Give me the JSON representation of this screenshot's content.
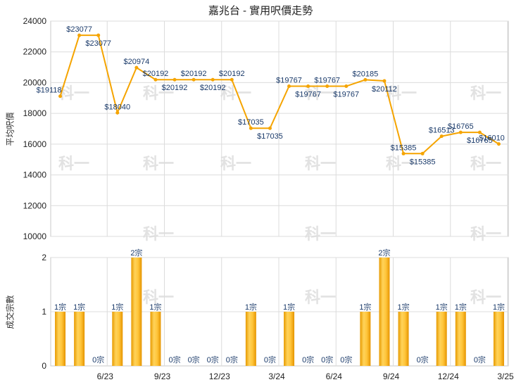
{
  "title": "嘉兆台 - 實用呎價走勢",
  "chart_data": [
    {
      "type": "line",
      "ylabel": "平均呎價",
      "ylim": [
        10000,
        24000
      ],
      "yticks": [
        10000,
        12000,
        14000,
        16000,
        18000,
        20000,
        22000,
        24000
      ],
      "x_ticks": [
        "6/23",
        "9/23",
        "12/23",
        "3/24",
        "6/24",
        "9/24",
        "12/24",
        "3/25"
      ],
      "values": [
        19118,
        23077,
        23077,
        18040,
        20974,
        20192,
        20192,
        20192,
        20192,
        20192,
        17035,
        17035,
        19767,
        19767,
        19767,
        19767,
        20185,
        20112,
        15385,
        15385,
        16513,
        16765,
        16765,
        16010
      ],
      "labels": [
        "$19118",
        "$23077",
        "$23077",
        "$18040",
        "$20974",
        "$20192",
        "$20192",
        "$20192",
        "$20192",
        "$20192",
        "$17035",
        "$17035",
        "$19767",
        "$19767",
        "$19767",
        "$19767",
        "$20185",
        "$20112",
        "$15385",
        "$15385",
        "$16513",
        "$16765",
        "$16765",
        "$16010"
      ],
      "color": "#f5a400"
    },
    {
      "type": "bar",
      "ylabel": "成交宗數",
      "ylim": [
        0,
        2
      ],
      "yticks": [
        0,
        1,
        2
      ],
      "values": [
        1,
        1,
        0,
        1,
        2,
        1,
        0,
        0,
        0,
        0,
        1,
        0,
        1,
        0,
        0,
        0,
        1,
        2,
        1,
        0,
        1,
        1,
        0,
        1
      ],
      "labels": [
        "1宗",
        "1宗",
        "0宗",
        "1宗",
        "2宗",
        "1宗",
        "0宗",
        "0宗",
        "0宗",
        "0宗",
        "1宗",
        "0宗",
        "1宗",
        "0宗",
        "0宗",
        "0宗",
        "1宗",
        "2宗",
        "1宗",
        "0宗",
        "1宗",
        "1宗",
        "0宗",
        "1宗"
      ],
      "color": "#f5a400"
    }
  ],
  "watermark": "科一"
}
